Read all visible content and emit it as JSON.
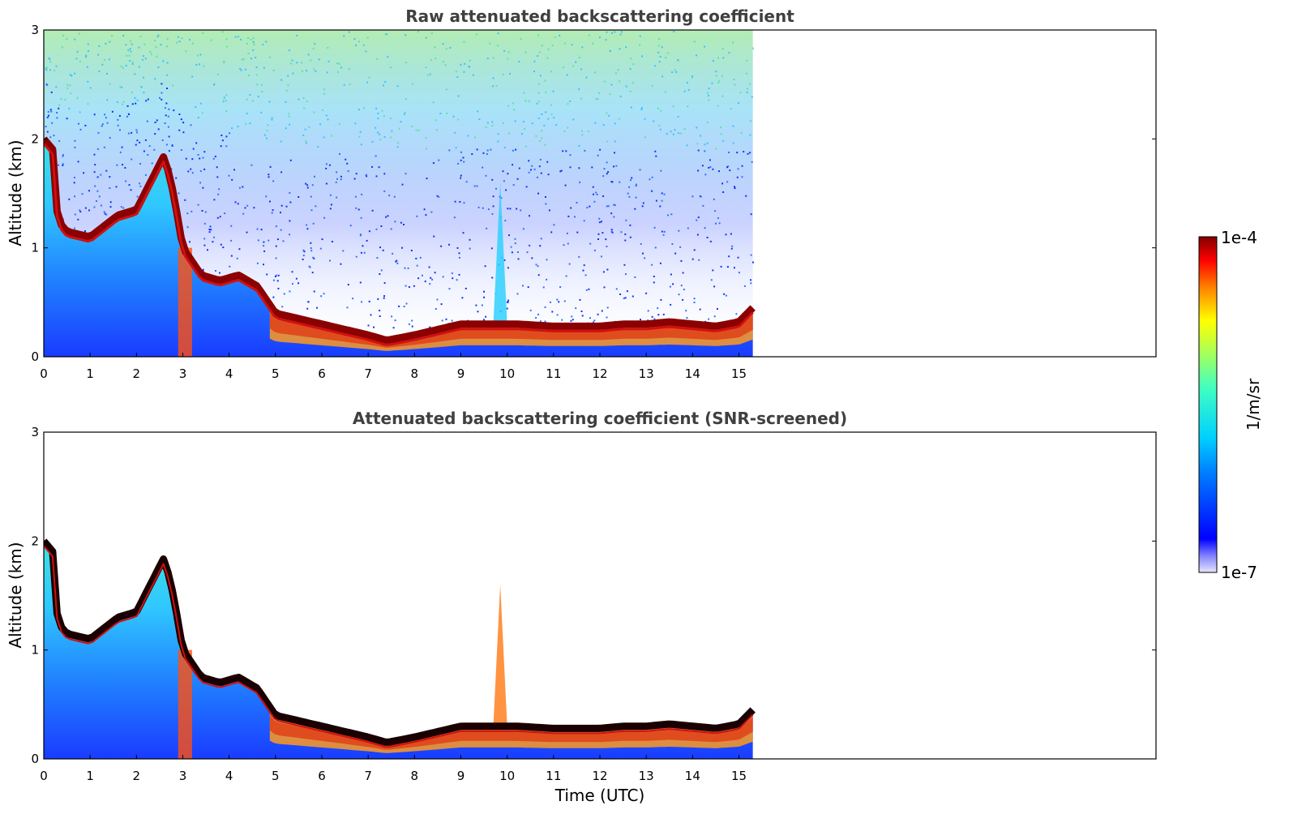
{
  "chart_data": [
    {
      "type": "heatmap",
      "title": "Raw attenuated backscattering coefficient",
      "xlabel": "",
      "ylabel": "Altitude (km)",
      "xlim": [
        0,
        24
      ],
      "ylim": [
        0,
        3
      ],
      "x_ticks": [
        "0",
        "1",
        "2",
        "3",
        "4",
        "5",
        "6",
        "7",
        "8",
        "9",
        "10",
        "11",
        "12",
        "13",
        "14",
        "15"
      ],
      "y_ticks": [
        "0",
        "1",
        "2",
        "3"
      ],
      "data_end_time": 15.3,
      "screened": false,
      "layer_top_profile": {
        "time": [
          0,
          0.2,
          0.3,
          0.5,
          1.0,
          1.3,
          1.6,
          2.0,
          2.3,
          2.6,
          2.8,
          3.0,
          3.4,
          3.8,
          4.2,
          4.6,
          5.0,
          5.5,
          6.0,
          6.5,
          7.0,
          7.4,
          8.0,
          8.5,
          9.0,
          9.5,
          9.8,
          10.2,
          11.0,
          12.0,
          12.5,
          13.0,
          13.5,
          14.0,
          14.5,
          15.0,
          15.3
        ],
        "altitude": [
          2.0,
          1.9,
          1.25,
          1.15,
          1.1,
          1.2,
          1.3,
          1.35,
          1.6,
          1.85,
          1.5,
          1.0,
          0.75,
          0.7,
          0.75,
          0.65,
          0.4,
          0.35,
          0.3,
          0.25,
          0.2,
          0.15,
          0.2,
          0.25,
          0.3,
          0.3,
          0.3,
          0.3,
          0.28,
          0.28,
          0.3,
          0.3,
          0.32,
          0.3,
          0.28,
          0.32,
          0.45
        ]
      }
    },
    {
      "type": "heatmap",
      "title": "Attenuated backscattering coefficient (SNR-screened)",
      "xlabel": "Time (UTC)",
      "ylabel": "Altitude (km)",
      "xlim": [
        0,
        24
      ],
      "ylim": [
        0,
        3
      ],
      "x_ticks": [
        "0",
        "1",
        "2",
        "3",
        "4",
        "5",
        "6",
        "7",
        "8",
        "9",
        "10",
        "11",
        "12",
        "13",
        "14",
        "15"
      ],
      "y_ticks": [
        "0",
        "1",
        "2",
        "3"
      ],
      "data_end_time": 15.3,
      "screened": true
    }
  ],
  "colorbar": {
    "label": "1/m/sr",
    "max_label": "1e-4",
    "min_label": "1e-7",
    "scale": "log",
    "colormap": "jet",
    "range": [
      1e-07,
      0.0001
    ]
  }
}
